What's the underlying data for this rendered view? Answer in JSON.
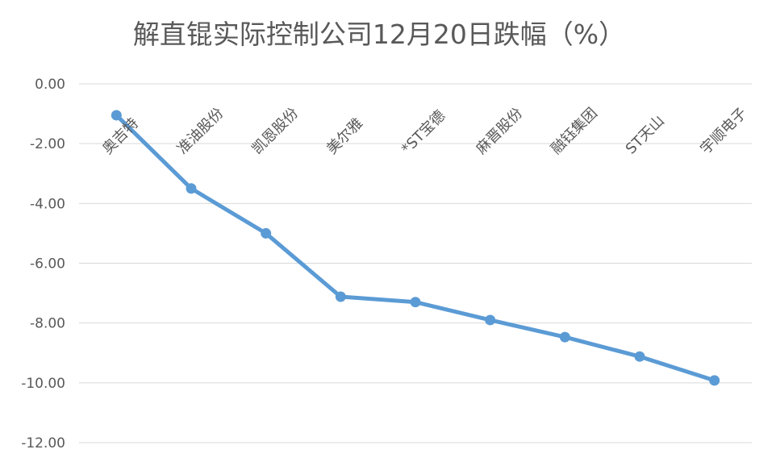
{
  "chart_data": {
    "type": "line",
    "title": "解直锟实际控制公司12月20日跌幅（%）",
    "categories": [
      "奥吉特",
      "准油股份",
      "凯恩股份",
      "美尔雅",
      "*ST宝德",
      "麻晋股份",
      "融钰集团",
      "ST天山",
      "宇顺电子"
    ],
    "series": [
      {
        "values": [
          -1.05,
          -3.5,
          -5.0,
          -7.12,
          -7.3,
          -7.9,
          -8.47,
          -9.12,
          -9.92
        ]
      }
    ],
    "y_ticks": [
      "0.00",
      "-2.00",
      "-4.00",
      "-6.00",
      "-8.00",
      "-10.00",
      "-12.00"
    ],
    "ylim": [
      -12,
      0
    ],
    "grid": true,
    "legend": "none",
    "colors": {
      "line": "#5b9bd5",
      "grid": "#d9d9d9",
      "text": "#595959"
    }
  }
}
